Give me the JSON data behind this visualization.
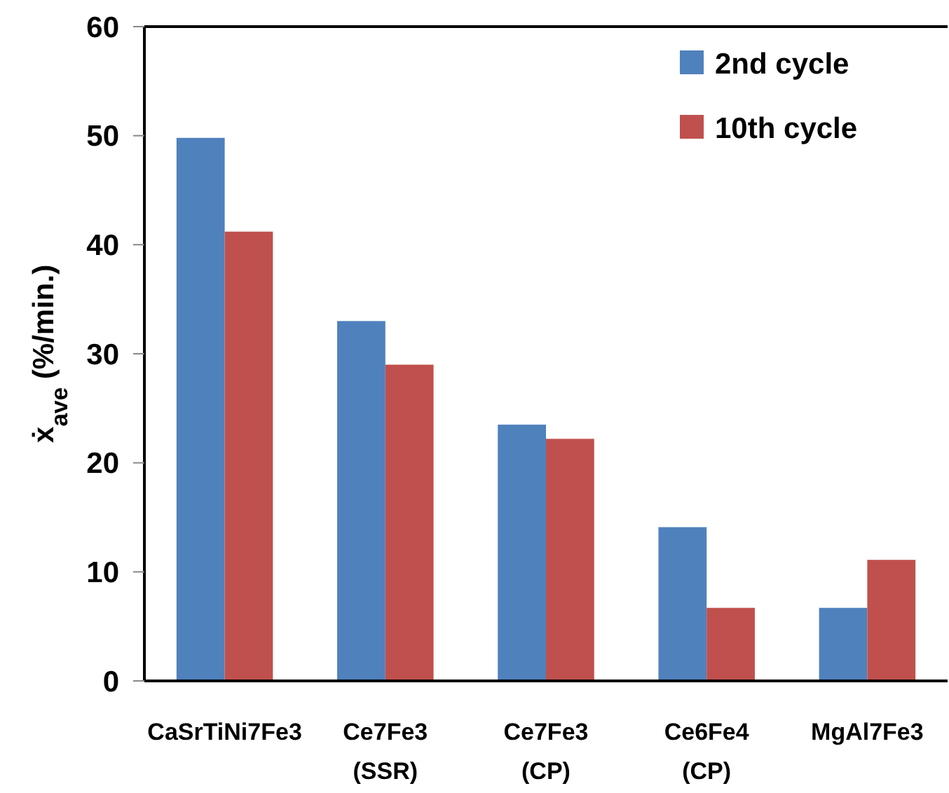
{
  "chart_data": {
    "type": "bar",
    "ylabel": "ẋ$_{ave}$  (%/min.)",
    "categories": [
      "CaSrTiNi7Fe3",
      "Ce7Fe3 (SSR)",
      "Ce7Fe3 (CP)",
      "Ce6Fe4 (CP)",
      "MgAl7Fe3"
    ],
    "series": [
      {
        "name": "2nd cycle",
        "color": "#4f81bd",
        "values": [
          49.8,
          33.0,
          23.5,
          14.1,
          6.7
        ]
      },
      {
        "name": "10th cycle",
        "color": "#c0504d",
        "values": [
          41.2,
          29.0,
          22.2,
          6.7,
          11.1
        ]
      }
    ],
    "ylim": [
      0,
      60
    ],
    "yticks": [
      0,
      10,
      20,
      30,
      40,
      50,
      60
    ],
    "grid": false,
    "legend": "top right"
  }
}
